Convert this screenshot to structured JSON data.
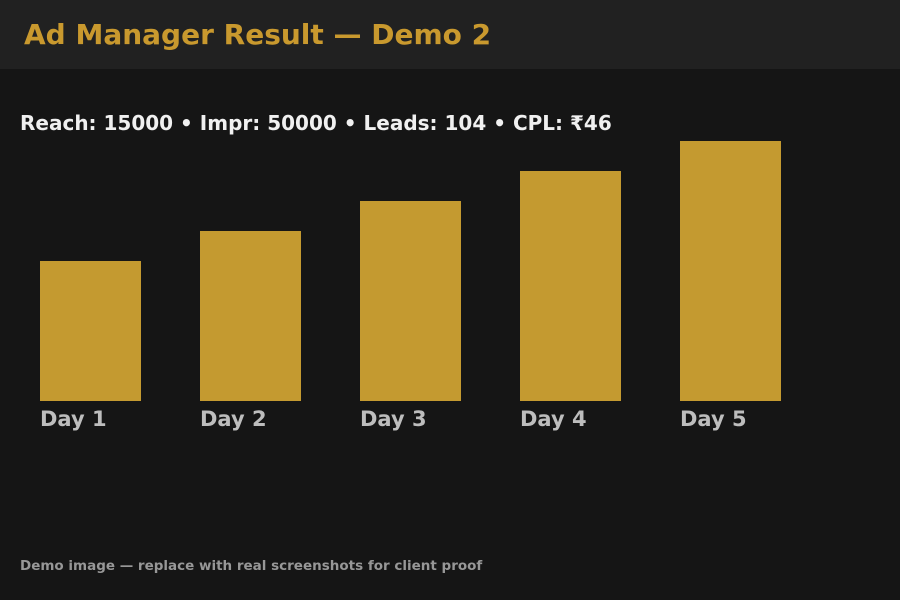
{
  "header": {
    "title": "Ad Manager Result — Demo 2"
  },
  "stats": {
    "line": "Reach: 15000 • Impr: 50000 • Leads: 104 • CPL: ₹46",
    "reach": "15000",
    "impressions": "50000",
    "leads": "104",
    "cpl": "₹46"
  },
  "footer": {
    "note": "Demo image — replace with real screenshots for client proof"
  },
  "colors": {
    "accent_gold": "#c9992e",
    "bar_gold": "#c49a30",
    "header_bg": "#212121",
    "body_bg": "#151515",
    "stats_text": "#f0f0f0",
    "label_text": "#bdbdbd",
    "footer_text": "#979797"
  },
  "chart_data": {
    "type": "bar",
    "categories": [
      "Day 1",
      "Day 2",
      "Day 3",
      "Day 4",
      "Day 5"
    ],
    "values": [
      140,
      170,
      200,
      230,
      260
    ],
    "title": "",
    "xlabel": "",
    "ylabel": "",
    "ylim": [
      0,
      260
    ],
    "grid": false,
    "legend": false,
    "axes_visible": false,
    "bar_color": "#c49a30"
  }
}
